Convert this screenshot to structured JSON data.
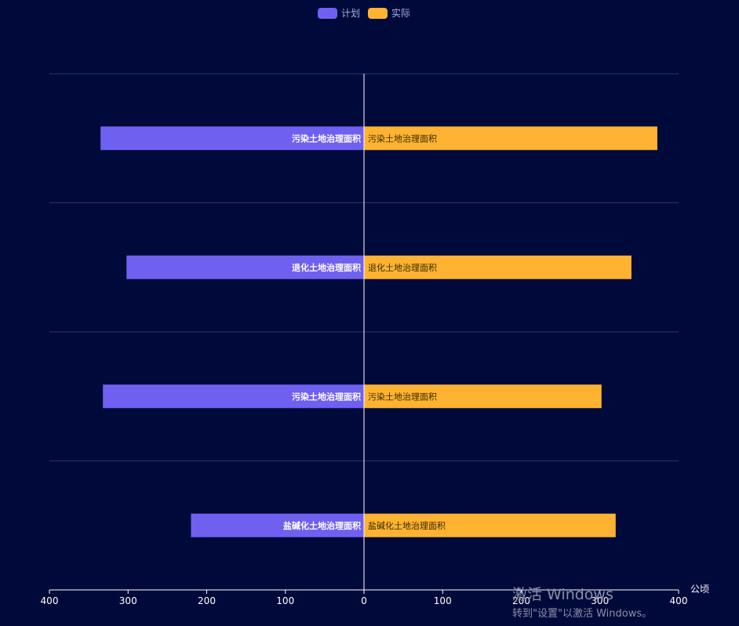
{
  "chart_data": {
    "type": "bar",
    "orientation": "horizontal-diverging",
    "categories": [
      "盐碱化土地治理面积",
      "污染土地治理面积",
      "退化土地治理面积",
      "污染土地治理面积"
    ],
    "series": [
      {
        "name": "计划",
        "color": "#7060f0",
        "direction": "left",
        "values": [
          220,
          332,
          302,
          335
        ]
      },
      {
        "name": "实际",
        "color": "#fdb232",
        "direction": "right",
        "values": [
          320,
          302,
          340,
          373
        ]
      }
    ],
    "xlim": [
      -400,
      400
    ],
    "x_ticks": [
      -400,
      -300,
      -200,
      -100,
      0,
      100,
      200,
      300,
      400
    ],
    "x_tick_labels": [
      "400",
      "300",
      "200",
      "100",
      "0",
      "100",
      "200",
      "300",
      "400"
    ],
    "xlabel": "公顷",
    "title": "",
    "legend_position": "top-center",
    "grid": true
  },
  "watermark": {
    "line1": "激活 Windows",
    "line2": "转到\"设置\"以激活 Windows。"
  }
}
